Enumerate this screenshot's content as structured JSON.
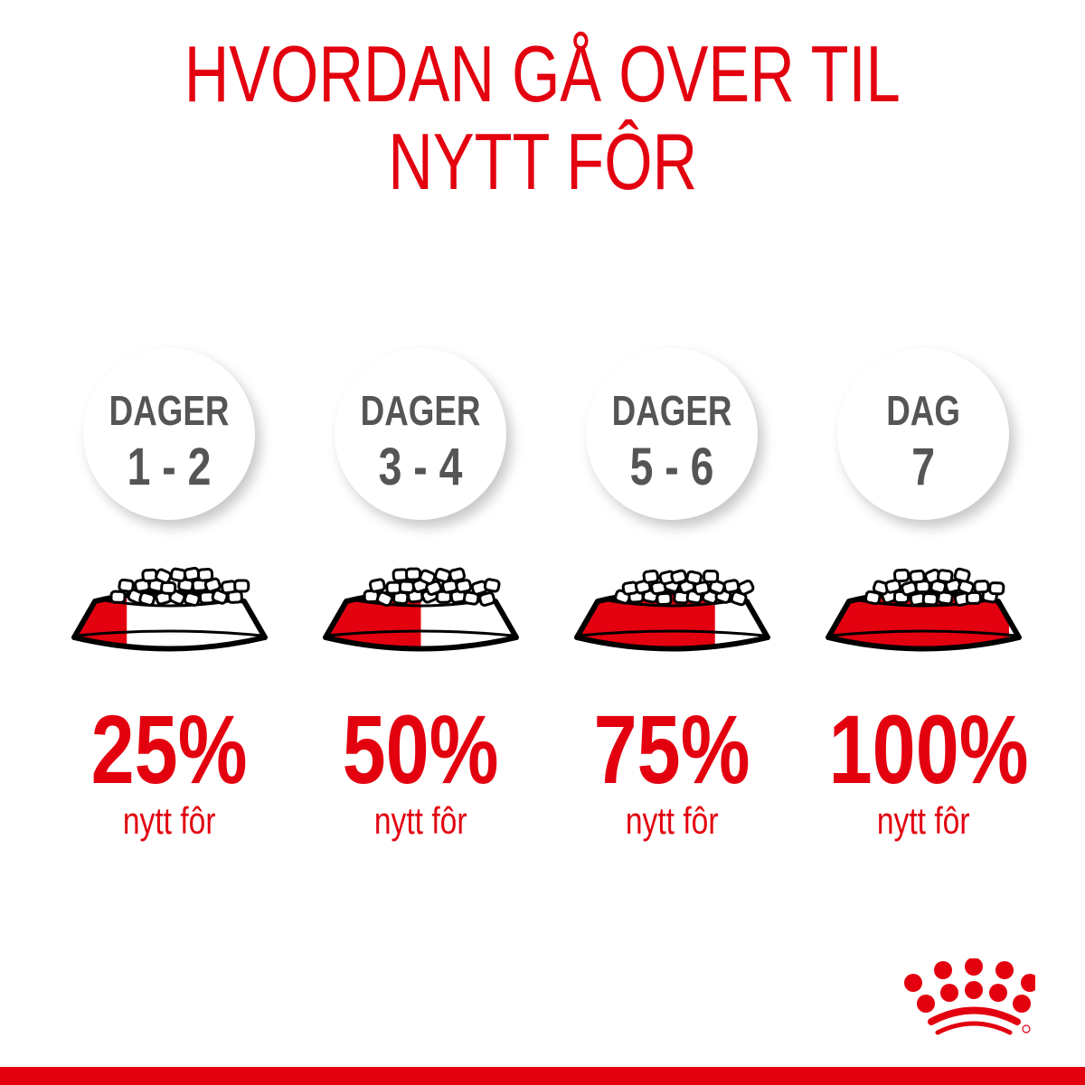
{
  "title": {
    "line1": "HVORDAN GÅ OVER TIL",
    "line2": "NYTT FÔR"
  },
  "colors": {
    "brand_red": "#e3000f",
    "text_gray": "#555555"
  },
  "steps": [
    {
      "label": "DAGER",
      "days": "1 - 2",
      "percent": "25%",
      "new_food_fraction": 0.25,
      "caption": "nytt fôr"
    },
    {
      "label": "DAGER",
      "days": "3 - 4",
      "percent": "50%",
      "new_food_fraction": 0.5,
      "caption": "nytt fôr"
    },
    {
      "label": "DAGER",
      "days": "5 - 6",
      "percent": "75%",
      "new_food_fraction": 0.75,
      "caption": "nytt fôr"
    },
    {
      "label": "DAG",
      "days": "7",
      "percent": "100%",
      "new_food_fraction": 1.0,
      "caption": "nytt fôr"
    }
  ],
  "logo": {
    "name": "royal-canin-crown-logo"
  }
}
